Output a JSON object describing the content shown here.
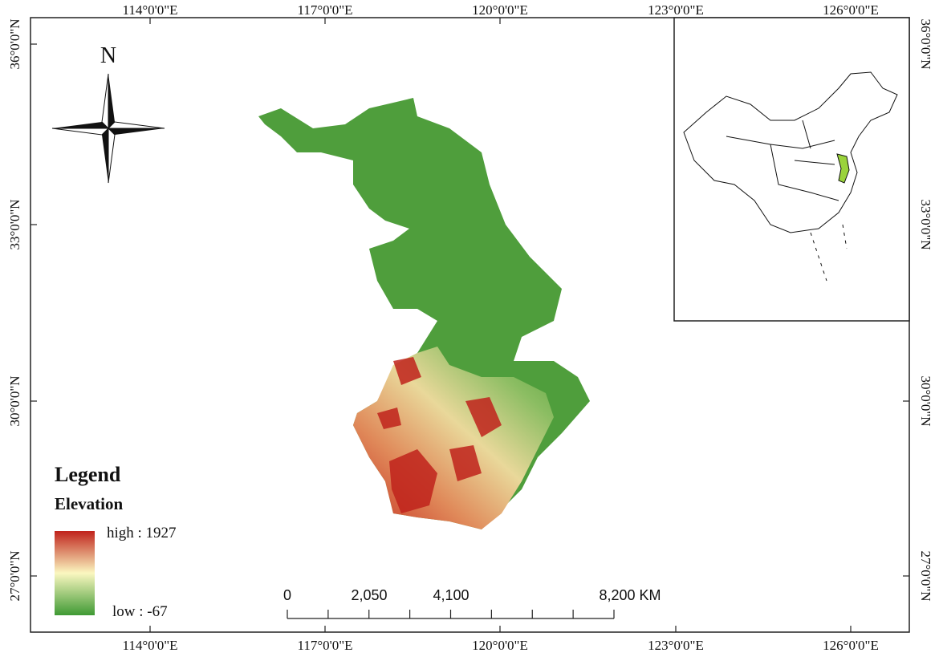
{
  "map": {
    "north_label": "N",
    "top_labels": [
      "114°0'0\"E",
      "117°0'0\"E",
      "120°0'0\"E",
      "123°0'0\"E",
      "126°0'0\"E"
    ],
    "bottom_labels": [
      "114°0'0\"E",
      "117°0'0\"E",
      "120°0'0\"E",
      "123°0'0\"E",
      "126°0'0\"E"
    ],
    "left_labels": [
      "36°0'0\"N",
      "33°0'0\"N",
      "30°0'0\"N",
      "27°0'0\"N"
    ],
    "right_labels": [
      "36°0'0\"N",
      "33°0'0\"N",
      "30°0'0\"N",
      "27°0'0\"N"
    ],
    "legend": {
      "title": "Legend",
      "subtitle": "Elevation",
      "high": "high : 1927",
      "low": "low : -67"
    },
    "scale_bar": {
      "labels": [
        "0",
        "2,050",
        "4,100",
        "8,200 KM"
      ]
    }
  }
}
